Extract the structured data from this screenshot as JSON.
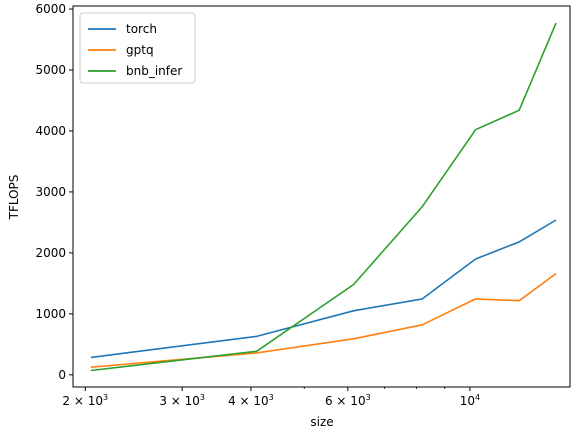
{
  "chart_data": {
    "type": "line",
    "xlabel": "size",
    "ylabel": "TFLOPS",
    "x_scale": "log",
    "xlim": [
      1900,
      15200
    ],
    "ylim": [
      -200,
      6050
    ],
    "grid": false,
    "legend_position": "top-left",
    "x": [
      2048,
      4096,
      6144,
      8192,
      10240,
      12288,
      14336
    ],
    "x_ticks": [
      {
        "value": 2000,
        "label": "2 × 10",
        "exp": "3"
      },
      {
        "value": 3000,
        "label": "3 × 10",
        "exp": "3"
      },
      {
        "value": 4000,
        "label": "4 × 10",
        "exp": "3"
      },
      {
        "value": 6000,
        "label": "6 × 10",
        "exp": "3"
      },
      {
        "value": 10000,
        "label": "10",
        "exp": "4"
      }
    ],
    "x_minor_ticks": [
      5000,
      7000,
      8000,
      9000
    ],
    "y_ticks": [
      0,
      1000,
      2000,
      3000,
      4000,
      5000,
      6000
    ],
    "series": [
      {
        "name": "torch",
        "color": "#1f77b4",
        "values": [
          285,
          630,
          1050,
          1245,
          1900,
          2180,
          2540
        ]
      },
      {
        "name": "gptq",
        "color": "#ff7f0e",
        "values": [
          125,
          360,
          590,
          820,
          1245,
          1215,
          1660
        ]
      },
      {
        "name": "bnb_infer",
        "color": "#2ca02c",
        "values": [
          70,
          385,
          1480,
          2760,
          4020,
          4340,
          5770
        ]
      }
    ]
  }
}
